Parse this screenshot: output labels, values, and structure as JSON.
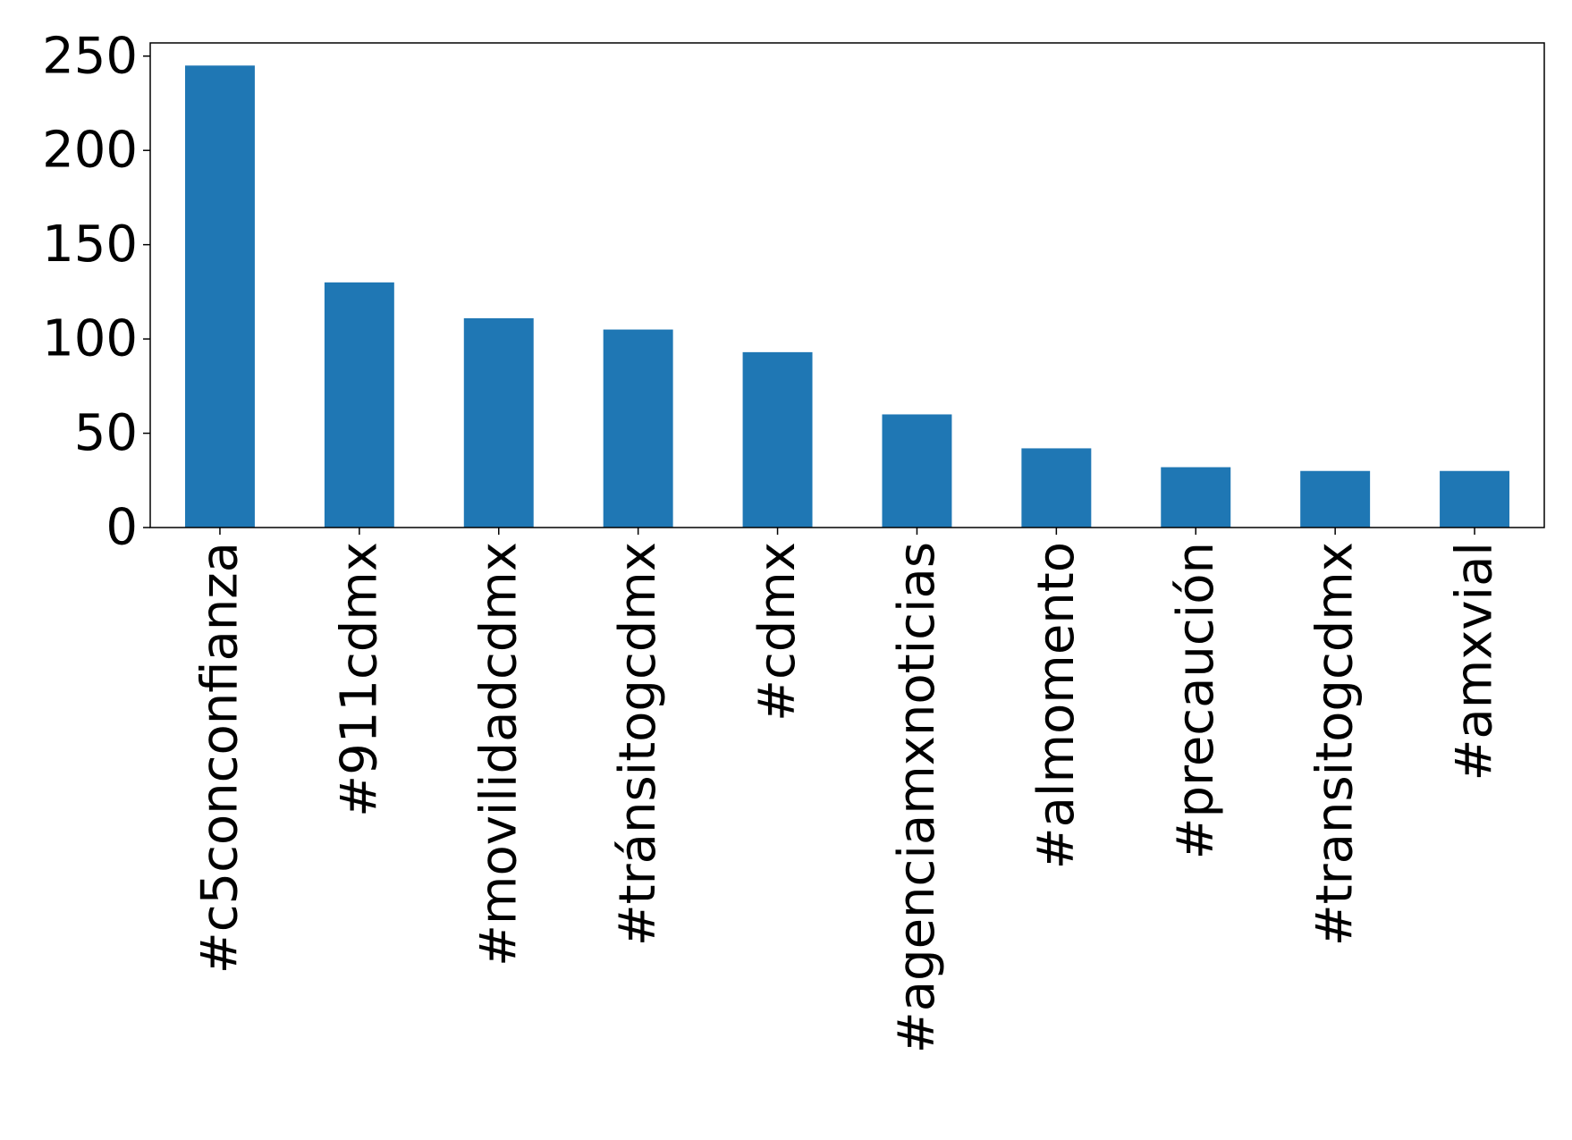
{
  "chart_data": {
    "type": "bar",
    "categories": [
      "#c5conconfianza",
      "#911cdmx",
      "#movilidadcdmx",
      "#tránsitogcdmx",
      "#cdmx",
      "#agenciamxnoticias",
      "#almomento",
      "#precaución",
      "#transitogcdmx",
      "#amxvial"
    ],
    "values": [
      245,
      130,
      111,
      105,
      93,
      60,
      42,
      32,
      30,
      30
    ],
    "title": "",
    "xlabel": "",
    "ylabel": "",
    "ylim": [
      0,
      257
    ],
    "yticks": [
      0,
      50,
      100,
      150,
      200,
      250
    ],
    "grid": false,
    "legend": "none",
    "bar_color": "#1f77b4"
  }
}
